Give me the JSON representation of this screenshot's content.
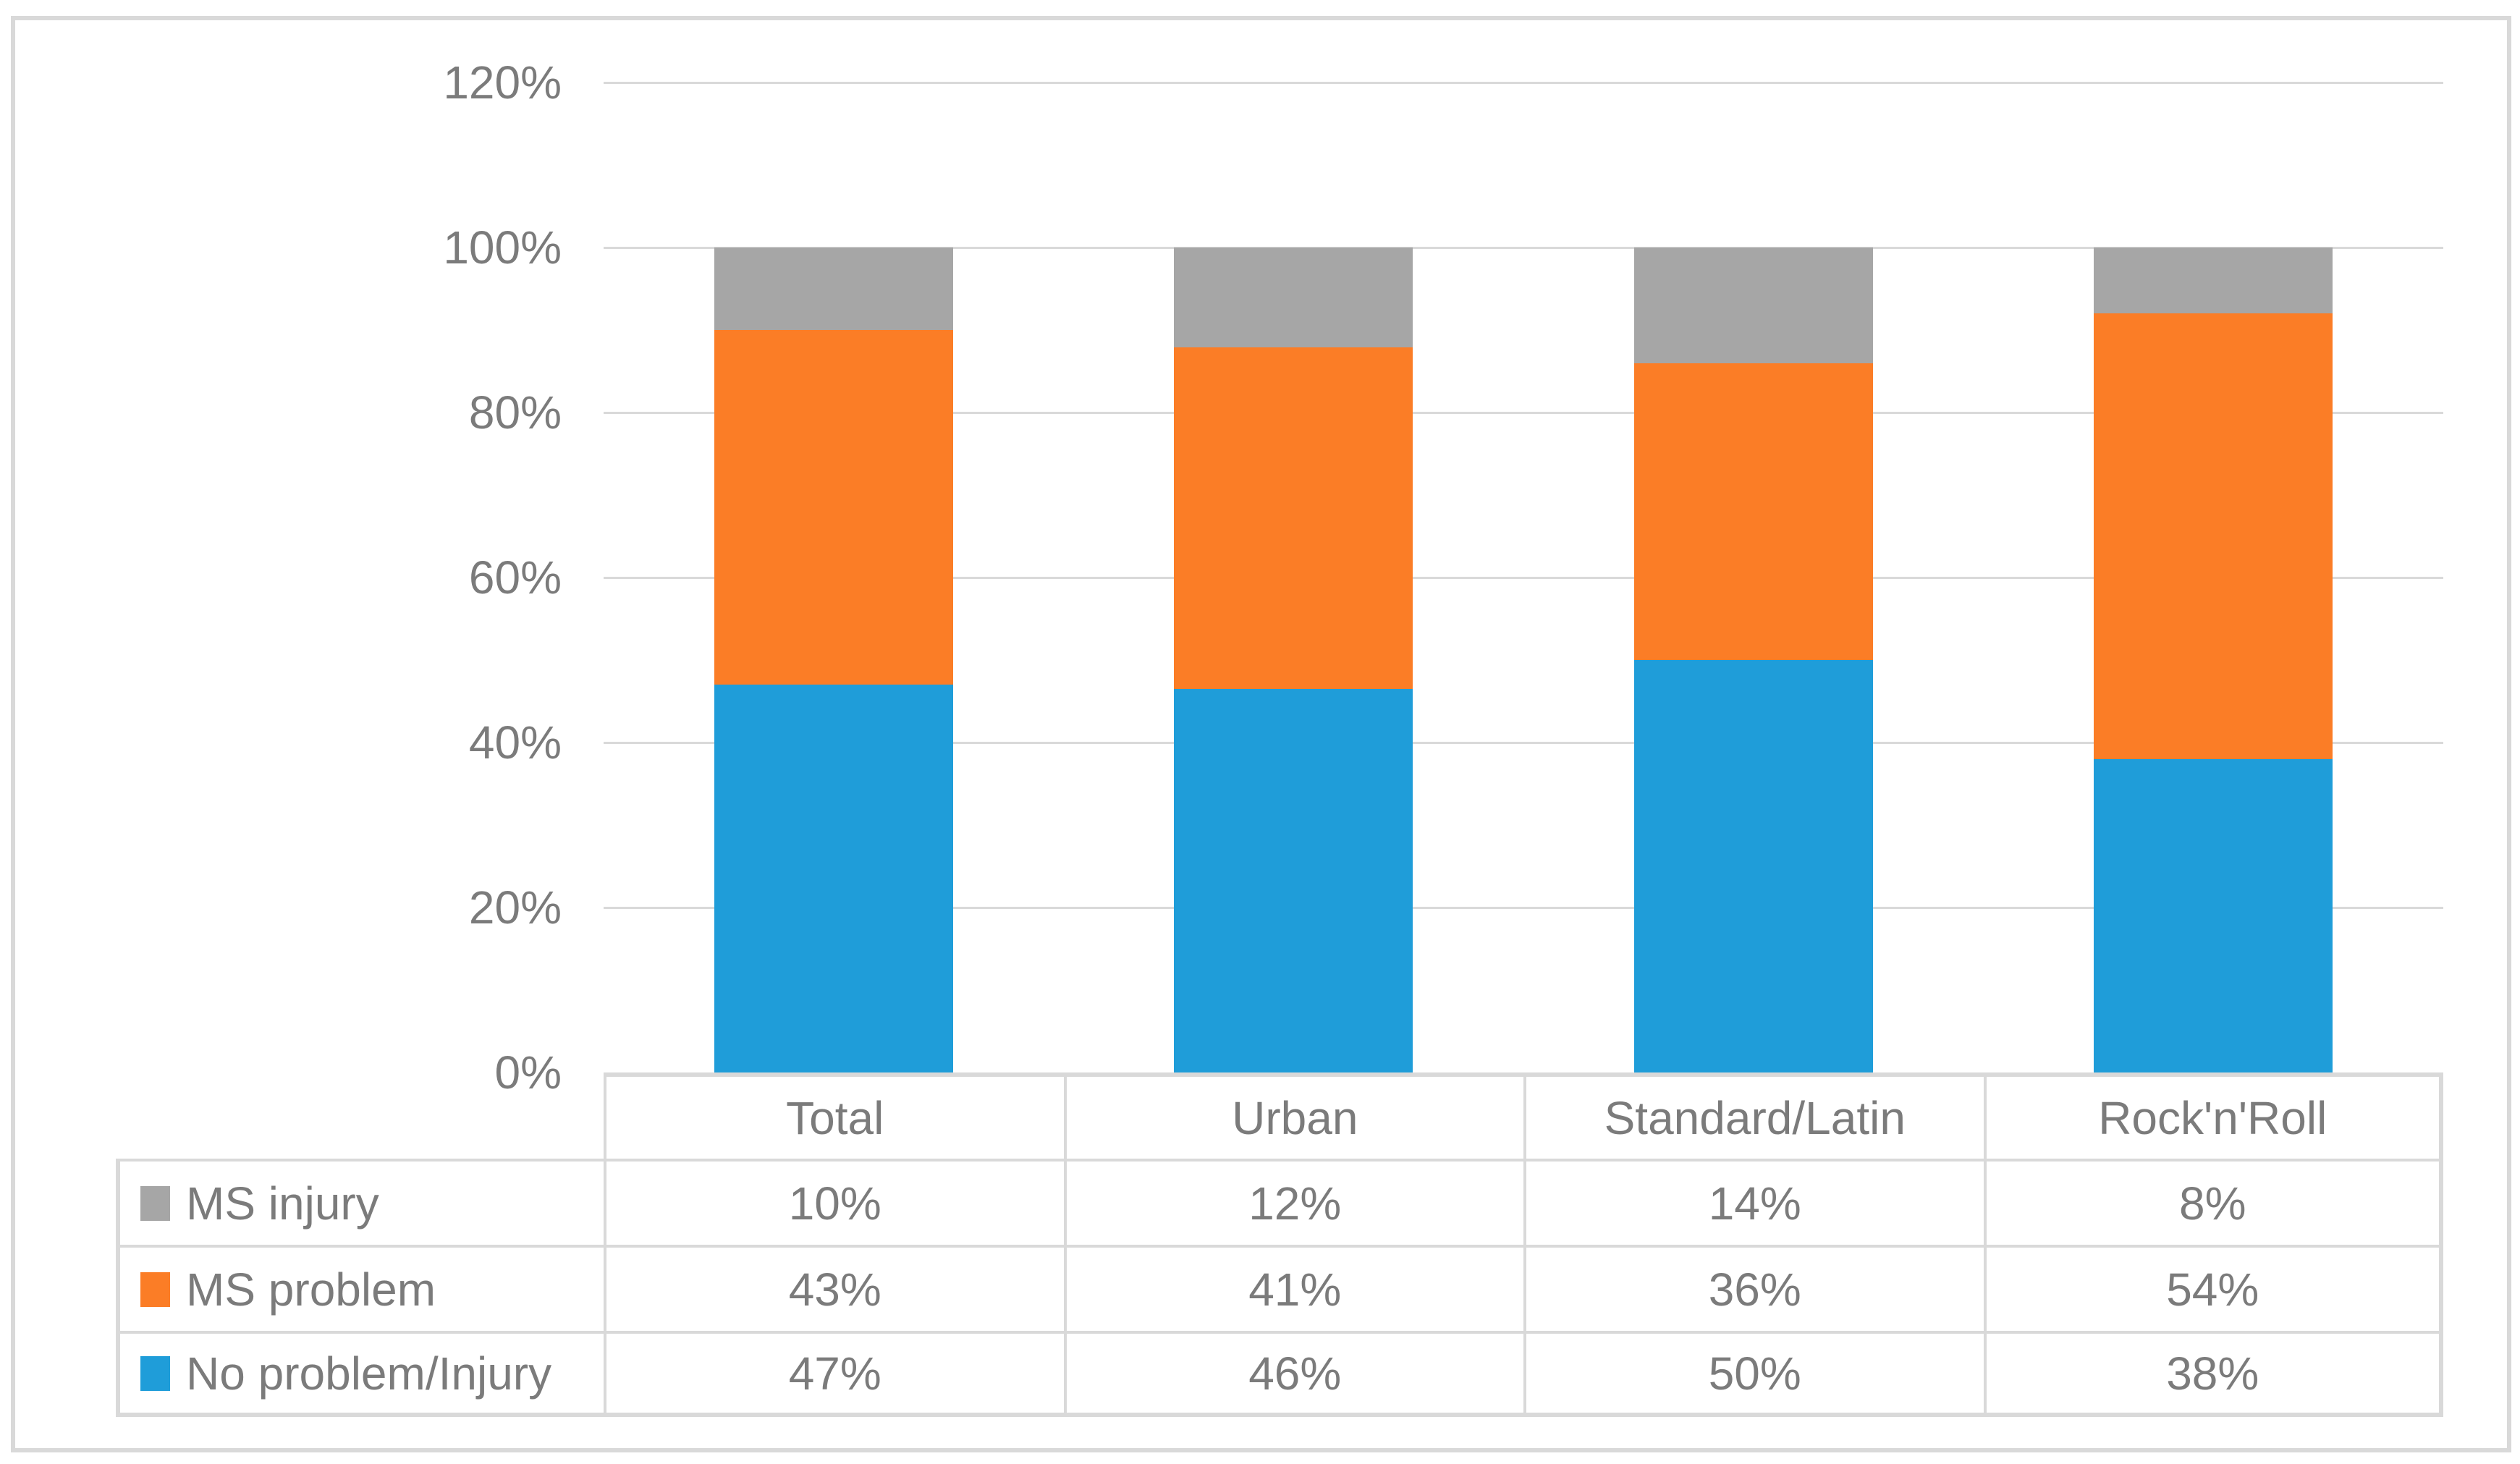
{
  "colors": {
    "series_gray": "#A6A6A6",
    "series_orange": "#FB7D26",
    "series_blue": "#1F9DD9",
    "gridline": "#D9D9D9",
    "table_border": "#D9D9D9",
    "text": "#7B7B7B"
  },
  "chart_data": {
    "type": "bar",
    "stacked": "percent",
    "title": "",
    "xlabel": "",
    "ylabel": "",
    "categories": [
      "Total",
      "Urban",
      "Standard/Latin",
      "Rock'n'Roll"
    ],
    "series": [
      {
        "name": "MS injury",
        "color": "#A6A6A6",
        "values": [
          10,
          12,
          14,
          8
        ]
      },
      {
        "name": "MS problem",
        "color": "#FB7D26",
        "values": [
          43,
          41,
          36,
          54
        ]
      },
      {
        "name": "No problem/Injury",
        "color": "#1F9DD9",
        "values": [
          47,
          46,
          50,
          38
        ]
      }
    ],
    "value_unit": "%",
    "y_axis": {
      "min": 0,
      "max": 120,
      "step": 20,
      "tick_labels": [
        "0%",
        "20%",
        "40%",
        "60%",
        "80%",
        "100%",
        "120%"
      ]
    },
    "grid": true,
    "legend_position": "data-table-left-column"
  },
  "table": {
    "header": [
      "Total",
      "Urban",
      "Standard/Latin",
      "Rock'n'Roll"
    ],
    "rows": [
      {
        "label": "MS injury",
        "color": "#A6A6A6",
        "values": [
          "10%",
          "12%",
          "14%",
          "8%"
        ]
      },
      {
        "label": "MS problem",
        "color": "#FB7D26",
        "values": [
          "43%",
          "41%",
          "36%",
          "54%"
        ]
      },
      {
        "label": "No problem/Injury",
        "color": "#1F9DD9",
        "values": [
          "47%",
          "46%",
          "50%",
          "38%"
        ]
      }
    ]
  }
}
